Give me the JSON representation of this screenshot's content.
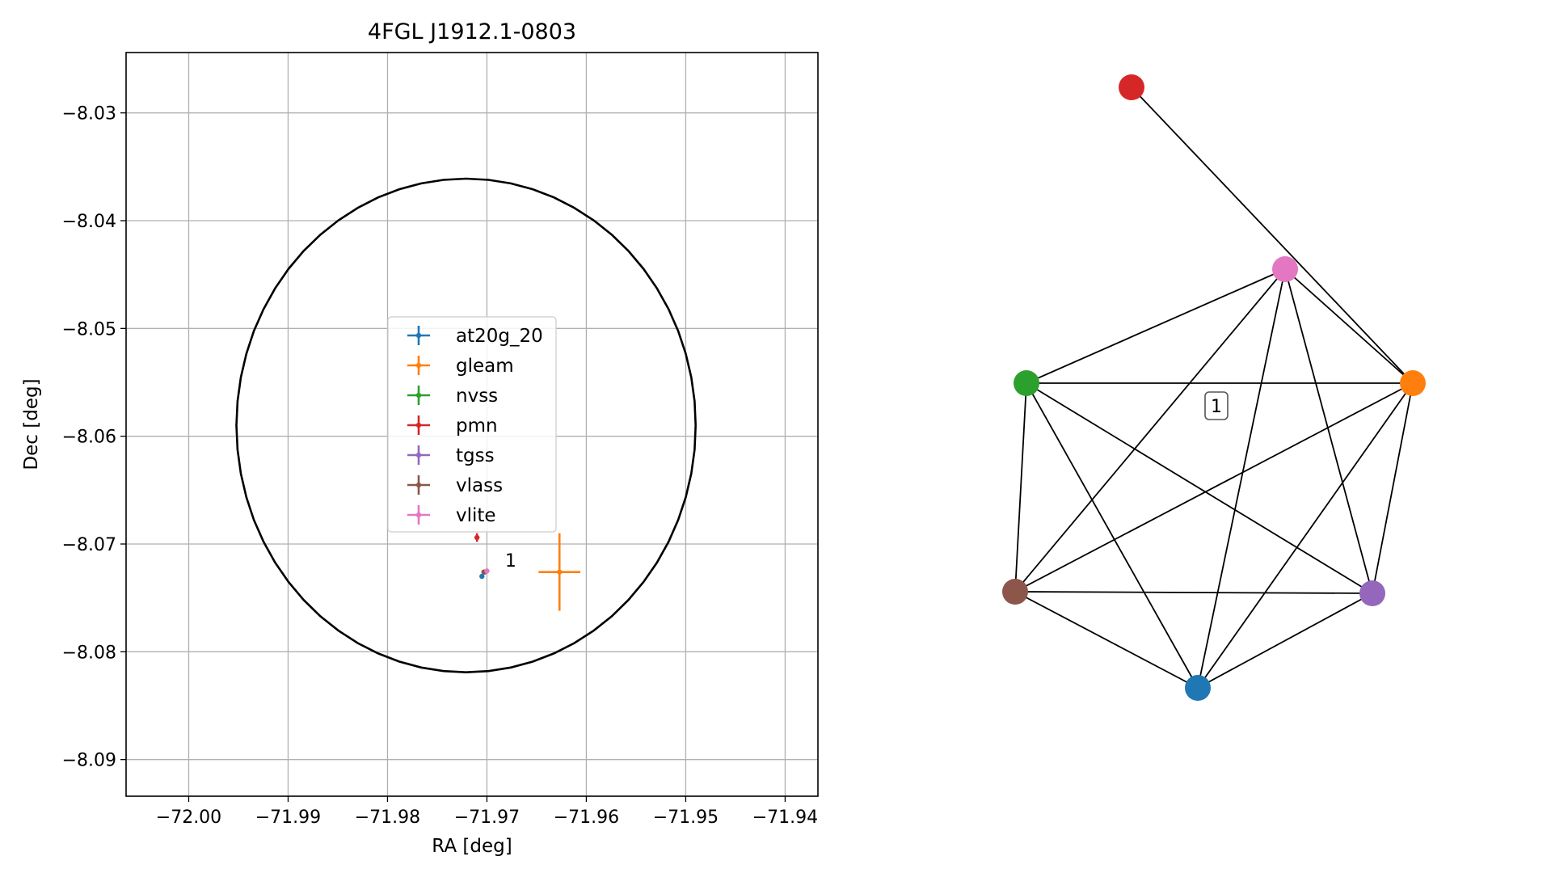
{
  "chart_data": [
    {
      "type": "scatter",
      "title": "4FGL J1912.1-0803",
      "xlabel": "RA [deg]",
      "ylabel": "Dec [deg]",
      "xlim": [
        -72.0063,
        -71.9367
      ],
      "ylim": [
        -8.0934,
        -8.0244
      ],
      "x_ticks": [
        -72.0,
        -71.99,
        -71.98,
        -71.97,
        -71.96,
        -71.95,
        -71.94
      ],
      "x_tick_labels": [
        "−72.00",
        "−71.99",
        "−71.98",
        "−71.97",
        "−71.96",
        "−71.95",
        "−71.94"
      ],
      "y_ticks": [
        -8.03,
        -8.04,
        -8.05,
        -8.06,
        -8.07,
        -8.08,
        -8.09
      ],
      "y_tick_labels": [
        "−8.03",
        "−8.04",
        "−8.05",
        "−8.06",
        "−8.07",
        "−8.08",
        "−8.09"
      ],
      "grid": true,
      "legend_position": "center",
      "circle": {
        "center": [
          -71.9721,
          -8.059
        ],
        "ra_radius": 0.0231,
        "dec_radius": 0.0229,
        "color": "#000000"
      },
      "cluster_label": {
        "text": "1",
        "x": -71.9698,
        "y": -8.0715
      },
      "series": [
        {
          "name": "at20g_20",
          "color": "#1f77b4",
          "x": -71.9705,
          "y": -8.073,
          "xerr": 0.0002,
          "yerr": 0.0002
        },
        {
          "name": "gleam",
          "color": "#ff7f0e",
          "x": -71.9627,
          "y": -8.0726,
          "xerr": 0.0021,
          "yerr": 0.0036
        },
        {
          "name": "nvss",
          "color": "#2ca02c",
          "x": -71.9703,
          "y": -8.0726,
          "xerr": 0.0001,
          "yerr": 0.0001
        },
        {
          "name": "pmn",
          "color": "#d62728",
          "x": -71.971,
          "y": -8.0694,
          "xerr": 0.0002,
          "yerr": 0.0004
        },
        {
          "name": "tgss",
          "color": "#9467bd",
          "x": -71.9702,
          "y": -8.0726,
          "xerr": 0.0001,
          "yerr": 0.0001
        },
        {
          "name": "vlass",
          "color": "#8c564b",
          "x": -71.9703,
          "y": -8.0726,
          "xerr": 0.0001,
          "yerr": 0.0001
        },
        {
          "name": "vlite",
          "color": "#e377c2",
          "x": -71.97,
          "y": -8.0725,
          "xerr": 0.0002,
          "yerr": 0.0002
        }
      ]
    },
    {
      "type": "network",
      "box_label": "1",
      "nodes": [
        {
          "id": "pmn",
          "color": "#d62728"
        },
        {
          "id": "vlite",
          "color": "#e377c2"
        },
        {
          "id": "nvss",
          "color": "#2ca02c"
        },
        {
          "id": "gleam",
          "color": "#ff7f0e"
        },
        {
          "id": "vlass",
          "color": "#8c564b"
        },
        {
          "id": "tgss",
          "color": "#9467bd"
        },
        {
          "id": "at20g_20",
          "color": "#1f77b4"
        }
      ],
      "edges": [
        [
          "pmn",
          "gleam"
        ],
        [
          "vlite",
          "nvss"
        ],
        [
          "vlite",
          "gleam"
        ],
        [
          "vlite",
          "vlass"
        ],
        [
          "vlite",
          "tgss"
        ],
        [
          "vlite",
          "at20g_20"
        ],
        [
          "nvss",
          "gleam"
        ],
        [
          "nvss",
          "vlass"
        ],
        [
          "nvss",
          "tgss"
        ],
        [
          "nvss",
          "at20g_20"
        ],
        [
          "gleam",
          "vlass"
        ],
        [
          "gleam",
          "tgss"
        ],
        [
          "gleam",
          "at20g_20"
        ],
        [
          "vlass",
          "tgss"
        ],
        [
          "vlass",
          "at20g_20"
        ],
        [
          "tgss",
          "at20g_20"
        ]
      ]
    }
  ]
}
